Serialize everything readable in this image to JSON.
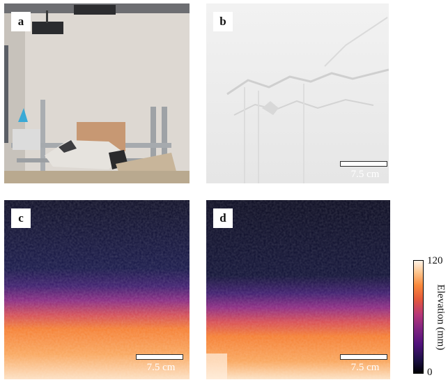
{
  "panels": {
    "a": {
      "label": "a"
    },
    "b": {
      "label": "b",
      "scale_text": "7.5 cm"
    },
    "c": {
      "label": "c",
      "scale_text": "7.5 cm"
    },
    "d": {
      "label": "d",
      "scale_text": "7.5 cm"
    }
  },
  "colorbar": {
    "max_label": "120",
    "min_label": "0",
    "title": "Elevation (mm)",
    "colors": [
      "#000004",
      "#51127c",
      "#b73779",
      "#f9893c",
      "#fff3e8"
    ]
  }
}
